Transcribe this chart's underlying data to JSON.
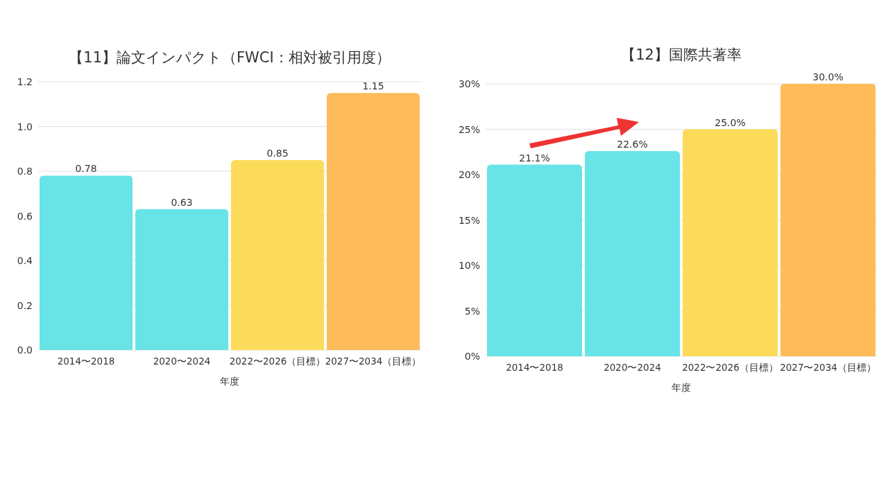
{
  "chart_data": [
    {
      "type": "bar",
      "title": "【11】論文インパクト（FWCI：相対被引用度）",
      "xlabel": "年度",
      "categories": [
        "2014〜2018",
        "2020〜2024",
        "2022〜2026（目標）",
        "2027〜2034（目標）"
      ],
      "values": [
        0.78,
        0.63,
        0.85,
        1.15
      ],
      "colors": [
        "#68e3e6",
        "#68e3e6",
        "#fddb5a",
        "#fdbb5a"
      ],
      "ylim": [
        0,
        1.2
      ],
      "yticks": [
        {
          "value": 0,
          "label": "0.0"
        },
        {
          "value": 0.2,
          "label": "0.2"
        },
        {
          "value": 0.4,
          "label": "0.4"
        },
        {
          "value": 0.6,
          "label": "0.6"
        },
        {
          "value": 0.8,
          "label": "0.8"
        },
        {
          "value": 1,
          "label": "1.0"
        },
        {
          "value": 1.2,
          "label": "1.2"
        }
      ],
      "grid": "y",
      "data_labels": true
    },
    {
      "type": "bar",
      "title": "【12】国際共著率",
      "xlabel": "年度",
      "categories": [
        "2014〜2018",
        "2020〜2024",
        "2022〜2026（目標）",
        "2027〜2034（目標）"
      ],
      "values": [
        21.1,
        22.6,
        25.0,
        30.0
      ],
      "value_labels": [
        "21.1%",
        "22.6%",
        "25.0%",
        "30.0%"
      ],
      "colors": [
        "#68e3e6",
        "#68e3e6",
        "#fddb5a",
        "#fdbb5a"
      ],
      "ylim": [
        0,
        30
      ],
      "yticks": [
        {
          "value": 0,
          "label": "0%"
        },
        {
          "value": 5,
          "label": "5%"
        },
        {
          "value": 10,
          "label": "10%"
        },
        {
          "value": 15,
          "label": "15%"
        },
        {
          "value": 20,
          "label": "20%"
        },
        {
          "value": 25,
          "label": "25%"
        },
        {
          "value": 30,
          "label": "30%"
        }
      ],
      "grid": "y"
    }
  ]
}
